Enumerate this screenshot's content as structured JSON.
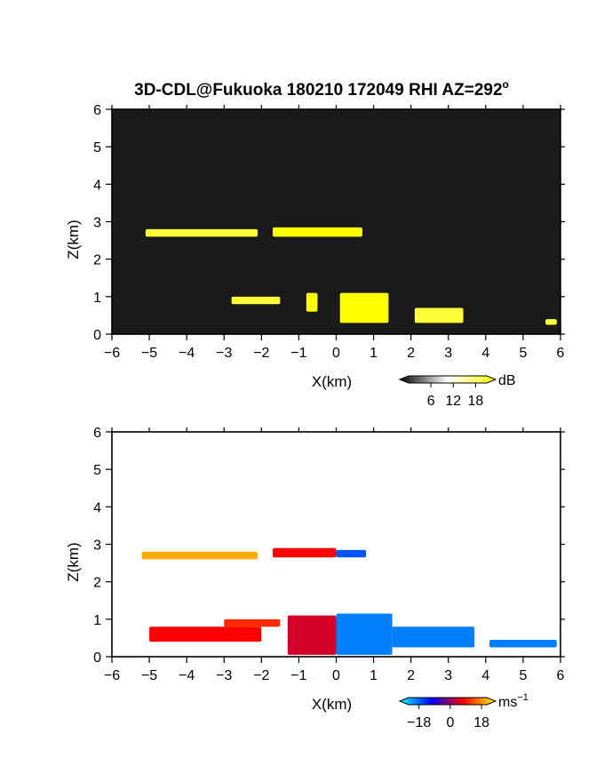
{
  "chart_data": {
    "title": "3D-CDL@Fukuoka 180210 172049 RHI AZ=292",
    "title_superscript": "o",
    "panels": [
      {
        "id": "reflectivity",
        "type": "heatmap",
        "xlabel": "X(km)",
        "ylabel": "Z(km)",
        "xlim": [
          -6,
          6
        ],
        "ylim": [
          0,
          6
        ],
        "xticks": [
          -6,
          -5,
          -4,
          -3,
          -2,
          -1,
          0,
          1,
          2,
          3,
          4,
          5,
          6
        ],
        "yticks": [
          0,
          1,
          2,
          3,
          4,
          5,
          6
        ],
        "colorbar": {
          "unit": "dB",
          "ticks": [
            6,
            12,
            18
          ],
          "colors": [
            "#000000",
            "#ffffff",
            "#ffff00"
          ]
        },
        "regions": [
          {
            "x": [
              -5.1,
              -2.1
            ],
            "z": [
              2.6,
              2.8
            ],
            "value": 16
          },
          {
            "x": [
              -1.7,
              0.7
            ],
            "z": [
              2.6,
              2.85
            ],
            "value": 18
          },
          {
            "x": [
              -2.8,
              -1.5
            ],
            "z": [
              0.8,
              1.0
            ],
            "value": 16
          },
          {
            "x": [
              -0.8,
              -0.5
            ],
            "z": [
              0.6,
              1.1
            ],
            "value": 18
          },
          {
            "x": [
              0.1,
              1.4
            ],
            "z": [
              0.3,
              1.1
            ],
            "value": 18
          },
          {
            "x": [
              2.1,
              3.4
            ],
            "z": [
              0.3,
              0.7
            ],
            "value": 16
          },
          {
            "x": [
              5.6,
              5.9
            ],
            "z": [
              0.25,
              0.4
            ],
            "value": 16
          }
        ]
      },
      {
        "id": "velocity",
        "type": "heatmap",
        "xlabel": "X(km)",
        "ylabel": "Z(km)",
        "xlim": [
          -6,
          6
        ],
        "ylim": [
          0,
          6
        ],
        "xticks": [
          -6,
          -5,
          -4,
          -3,
          -2,
          -1,
          0,
          1,
          2,
          3,
          4,
          5,
          6
        ],
        "yticks": [
          0,
          1,
          2,
          3,
          4,
          5,
          6
        ],
        "colorbar": {
          "unit": "ms",
          "unit_superscript": "−1",
          "tick_labels": [
            "−18",
            "0",
            "18"
          ],
          "ticks": [
            -18,
            0,
            18
          ],
          "colors": [
            "#00ffff",
            "#0000ff",
            "#ff0000",
            "#ffff00"
          ]
        },
        "regions": [
          {
            "x": [
              -5.2,
              -2.1
            ],
            "z": [
              2.6,
              2.8
            ],
            "value": 14
          },
          {
            "x": [
              -1.7,
              0.0
            ],
            "z": [
              2.65,
              2.9
            ],
            "value": 6
          },
          {
            "x": [
              0.0,
              0.8
            ],
            "z": [
              2.65,
              2.85
            ],
            "value": -10
          },
          {
            "x": [
              -5.0,
              -2.0
            ],
            "z": [
              0.4,
              0.8
            ],
            "value": 6
          },
          {
            "x": [
              -3.0,
              -1.5
            ],
            "z": [
              0.8,
              1.0
            ],
            "value": 8
          },
          {
            "x": [
              -1.3,
              0.0
            ],
            "z": [
              0.05,
              1.1
            ],
            "value": 4
          },
          {
            "x": [
              0.0,
              1.5
            ],
            "z": [
              0.05,
              1.15
            ],
            "value": -12
          },
          {
            "x": [
              1.5,
              3.7
            ],
            "z": [
              0.25,
              0.8
            ],
            "value": -12
          },
          {
            "x": [
              4.1,
              5.9
            ],
            "z": [
              0.25,
              0.45
            ],
            "value": -12
          }
        ]
      }
    ]
  }
}
